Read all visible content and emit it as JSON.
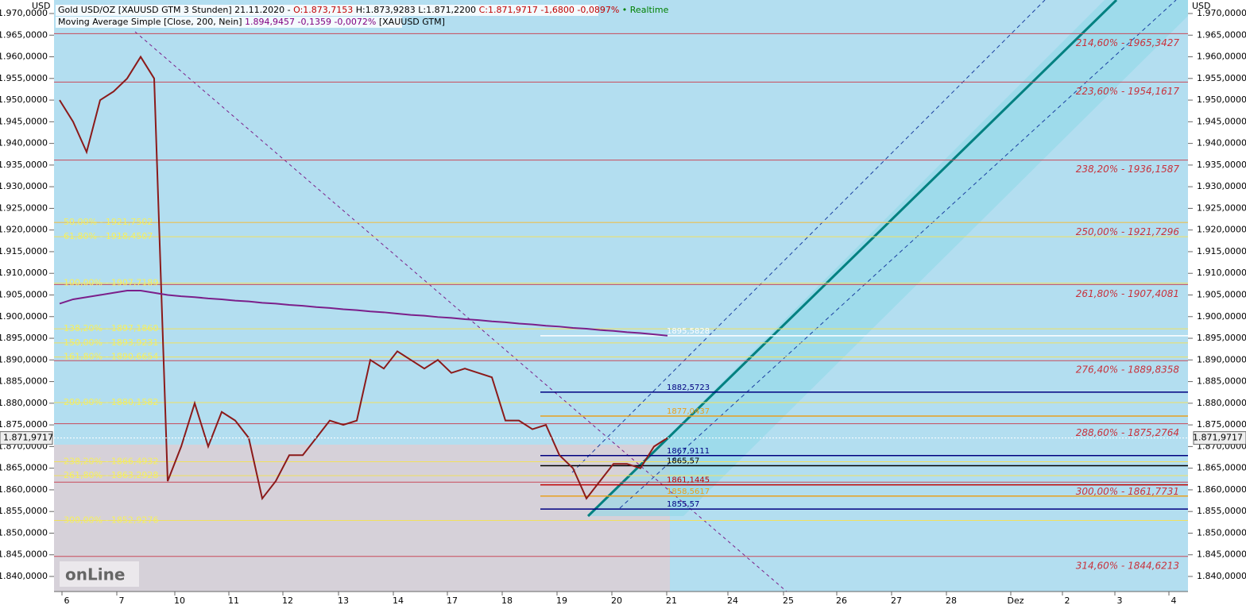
{
  "chart_data": {
    "type": "line",
    "header": [
      {
        "text": "Gold USD/OZ [XAUUSD GTM 3 Stunden] 21.11.2020 -",
        "color": "#000000"
      },
      {
        "text": "O:1.873,7153",
        "color": "#c00000"
      },
      {
        "text": "H:1.873,9283 L:1.871,2200",
        "color": "#000000"
      },
      {
        "text": "C:1.871,9717 -1,6800 -0,0897%",
        "color": "#c00000"
      },
      {
        "text": "• Realtime",
        "color": "#008000"
      }
    ],
    "subheader": [
      {
        "text": "Moving Average Simple [Close, 200, Nein]",
        "color": "#000000"
      },
      {
        "text": "1.894,9457 -0,1359 -0,0072%",
        "color": "#800080"
      },
      {
        "text": "[XAUUSD GTM]",
        "color": "#000000"
      }
    ],
    "y_unit": "USD",
    "ylim": [
      1837,
      1972
    ],
    "yticks": [
      {
        "value": 1970,
        "label": "1.970,0000"
      },
      {
        "value": 1965,
        "label": "1.965,0000"
      },
      {
        "value": 1960,
        "label": "1.960,0000"
      },
      {
        "value": 1955,
        "label": "1.955,0000"
      },
      {
        "value": 1950,
        "label": "1.950,0000"
      },
      {
        "value": 1945,
        "label": "1.945,0000"
      },
      {
        "value": 1940,
        "label": "1.940,0000"
      },
      {
        "value": 1935,
        "label": "1.935,0000"
      },
      {
        "value": 1930,
        "label": "1.930,0000"
      },
      {
        "value": 1925,
        "label": "1.925,0000"
      },
      {
        "value": 1920,
        "label": "1.920,0000"
      },
      {
        "value": 1915,
        "label": "1.915,0000"
      },
      {
        "value": 1910,
        "label": "1.910,0000"
      },
      {
        "value": 1905,
        "label": "1.905,0000"
      },
      {
        "value": 1900,
        "label": "1.900,0000"
      },
      {
        "value": 1895,
        "label": "1.895,0000"
      },
      {
        "value": 1890,
        "label": "1.890,0000"
      },
      {
        "value": 1885,
        "label": "1.885,0000"
      },
      {
        "value": 1880,
        "label": "1.880,0000"
      },
      {
        "value": 1875,
        "label": "1.875,0000"
      },
      {
        "value": 1870,
        "label": "1.870,0000"
      },
      {
        "value": 1865,
        "label": "1.865,0000"
      },
      {
        "value": 1860,
        "label": "1.860,0000"
      },
      {
        "value": 1855,
        "label": "1.855,0000"
      },
      {
        "value": 1850,
        "label": "1.850,0000"
      },
      {
        "value": 1845,
        "label": "1.845,0000"
      },
      {
        "value": 1840,
        "label": "1.840,0000"
      }
    ],
    "x_labels": [
      "6",
      "7",
      "10",
      "11",
      "12",
      "13",
      "14",
      "17",
      "18",
      "19",
      "20",
      "21",
      "24",
      "25",
      "26",
      "27",
      "28",
      "Dez",
      "2",
      "3",
      "4"
    ],
    "current_price": {
      "value": 1871.9717,
      "label": "1.871,9717"
    },
    "series": [
      {
        "name": "Gold USD/OZ",
        "color": "#8b1a1a",
        "values": [
          1950,
          1945,
          1938,
          1950,
          1952,
          1955,
          1960,
          1955,
          1862,
          1870,
          1880,
          1870,
          1878,
          1876,
          1872,
          1858,
          1862,
          1868,
          1868,
          1872,
          1876,
          1875,
          1876,
          1890,
          1888,
          1892,
          1890,
          1888,
          1890,
          1887,
          1888,
          1887,
          1886,
          1876,
          1876,
          1874,
          1875,
          1868,
          1865,
          1858,
          1862,
          1866,
          1866,
          1865,
          1870,
          1872
        ]
      },
      {
        "name": "Moving Average Simple",
        "color": "#7b1f8a",
        "values": [
          1903,
          1904,
          1904.5,
          1905,
          1905.5,
          1906,
          1906,
          1905.5,
          1905,
          1904.7,
          1904.5,
          1904.2,
          1904,
          1903.7,
          1903.5,
          1903.2,
          1903,
          1902.7,
          1902.5,
          1902.2,
          1902,
          1901.7,
          1901.5,
          1901.2,
          1901,
          1900.7,
          1900.4,
          1900.2,
          1899.9,
          1899.7,
          1899.4,
          1899.2,
          1898.9,
          1898.7,
          1898.4,
          1898.2,
          1897.9,
          1897.7,
          1897.4,
          1897.2,
          1896.9,
          1896.7,
          1896.4,
          1896.2,
          1895.9,
          1895.6
        ]
      }
    ],
    "fib_right": [
      {
        "value": 1965.3427,
        "label": "214,60% - 1965,3427"
      },
      {
        "value": 1954.1617,
        "label": "223,60% - 1954,1617"
      },
      {
        "value": 1936.1587,
        "label": "238,20% - 1936,1587"
      },
      {
        "value": 1921.7296,
        "label": "250,00% - 1921,7296"
      },
      {
        "value": 1907.4081,
        "label": "261,80% - 1907,4081"
      },
      {
        "value": 1889.8358,
        "label": "276,40% - 1889,8358"
      },
      {
        "value": 1875.2764,
        "label": "288,60% - 1875,2764"
      },
      {
        "value": 1861.7731,
        "label": "300,00% - 1861,7731"
      },
      {
        "value": 1844.6213,
        "label": "314,60% - 1844,6213"
      }
    ],
    "fib_left": [
      {
        "value": 1921.7502,
        "label": "50,00% - 1921,7502"
      },
      {
        "value": 1918.4507,
        "label": "61,80% - 1918,4507"
      },
      {
        "value": 1907.7189,
        "label": "100,00% - 1907,7189"
      },
      {
        "value": 1897.186,
        "label": "138,20% - 1897,1860"
      },
      {
        "value": 1893.9231,
        "label": "150,00% - 1893,9231"
      },
      {
        "value": 1890.6654,
        "label": "161,80% - 1890,6654"
      },
      {
        "value": 1880.1582,
        "label": "200,00% - 1880,1582"
      },
      {
        "value": 1866.4932,
        "label": "238,20% - 1866,4932"
      },
      {
        "value": 1863.2928,
        "label": "261,80% - 1863,2928"
      },
      {
        "value": 1852.9276,
        "label": "300,00% - 1852,9276"
      }
    ],
    "price_annotations": [
      {
        "value": 1895.5828,
        "label": "1895,5828",
        "color": "#ffffff"
      },
      {
        "value": 1882.5723,
        "label": "1882,5723",
        "color": "#000080"
      },
      {
        "value": 1877.0437,
        "label": "1877,0437",
        "color": "#e8a020"
      },
      {
        "value": 1867.9111,
        "label": "1867,9111",
        "color": "#000080"
      },
      {
        "value": 1865.57,
        "label": "1865,57",
        "color": "#000000"
      },
      {
        "value": 1861.1445,
        "label": "1861,1445",
        "color": "#c00000"
      },
      {
        "value": 1858.5617,
        "label": "1858,5617",
        "color": "#e8a020"
      },
      {
        "value": 1855.57,
        "label": "1855,57",
        "color": "#000080"
      }
    ]
  }
}
